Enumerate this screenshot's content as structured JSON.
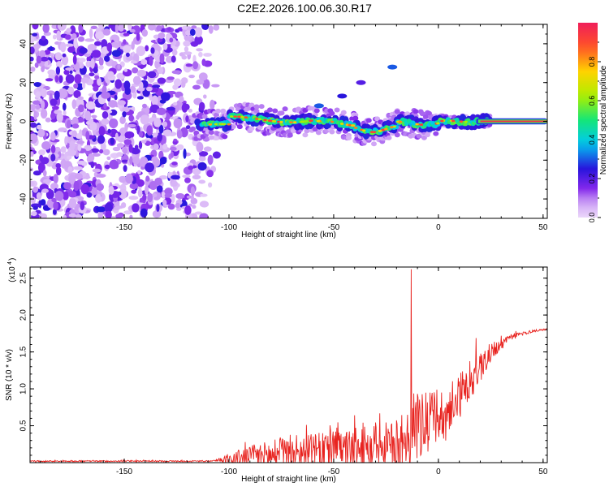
{
  "title": "C2E2.2026.100.06.30.R17",
  "chart_data": [
    {
      "type": "heatmap",
      "name": "spectrogram",
      "xlabel": "Height of straight line (km)",
      "ylabel": "Frequency (Hz)",
      "xlim": [
        -195,
        52
      ],
      "ylim": [
        -50,
        50
      ],
      "xticks": [
        -150,
        -100,
        -50,
        0,
        50
      ],
      "yticks": [
        -40,
        -20,
        0,
        20,
        40
      ],
      "xtick_labels": [
        "-150",
        "-100",
        "-50",
        "0",
        "50"
      ],
      "ytick_labels": [
        "-40",
        "-20",
        "0",
        "20",
        "40"
      ],
      "description_of_structure": {
        "noise_region_x": [
          -195,
          -112
        ],
        "signal_band_x": [
          -118,
          52
        ],
        "signal_center_freq": 0,
        "isolated_spots": [
          {
            "x": -46,
            "y": 13,
            "value": 0.25
          },
          {
            "x": -37,
            "y": 20,
            "value": 0.2
          },
          {
            "x": -22,
            "y": 28,
            "value": 0.3
          },
          {
            "x": -57,
            "y": 8,
            "value": 0.3
          }
        ]
      },
      "colorbar": {
        "label": "Normalized spectral amplitude",
        "range": [
          0,
          1
        ],
        "ticks": [
          0.0,
          0.2,
          0.4,
          0.6,
          0.8
        ],
        "tick_labels": [
          "0.0",
          "0.2",
          "0.4",
          "0.6",
          "0.8"
        ]
      }
    },
    {
      "type": "line",
      "name": "snr",
      "xlabel": "Height of straight line (km)",
      "ylabel": "SNR (10 * v/v)",
      "scale_label": "(x10",
      "scale_exponent": "4",
      "scale_suffix": ")",
      "xlim": [
        -195,
        52
      ],
      "ylim": [
        0,
        2.65
      ],
      "xticks": [
        -150,
        -100,
        -50,
        0,
        50
      ],
      "yticks": [
        0.5,
        1.0,
        1.5,
        2.0,
        2.5
      ],
      "xtick_labels": [
        "-150",
        "-100",
        "-50",
        "0",
        "50"
      ],
      "ytick_labels": [
        "0.5",
        "1.0",
        "1.5",
        "2.0",
        "2.5"
      ],
      "color": "#e8231f",
      "envelope": {
        "x": [
          -195,
          -110,
          -105,
          -100,
          -90,
          -80,
          -70,
          -60,
          -50,
          -40,
          -30,
          -20,
          -15,
          -14,
          -13,
          -10,
          -5,
          0,
          5,
          10,
          15,
          20,
          25,
          30,
          35,
          40,
          45,
          52
        ],
        "base": [
          0.02,
          0.02,
          0.03,
          0.05,
          0.08,
          0.1,
          0.12,
          0.14,
          0.16,
          0.18,
          0.2,
          0.22,
          0.25,
          0.3,
          0.4,
          0.45,
          0.5,
          0.6,
          0.7,
          0.9,
          1.1,
          1.3,
          1.5,
          1.6,
          1.7,
          1.75,
          1.78,
          1.81
        ],
        "amp": [
          0.01,
          0.01,
          0.02,
          0.08,
          0.18,
          0.22,
          0.25,
          0.28,
          0.3,
          0.32,
          0.35,
          0.4,
          0.45,
          0.6,
          0.6,
          0.55,
          0.5,
          0.45,
          0.4,
          0.35,
          0.3,
          0.25,
          0.15,
          0.08,
          0.05,
          0.03,
          0.02,
          0.01
        ]
      },
      "peak": {
        "x": -13,
        "y": 2.62
      }
    }
  ]
}
